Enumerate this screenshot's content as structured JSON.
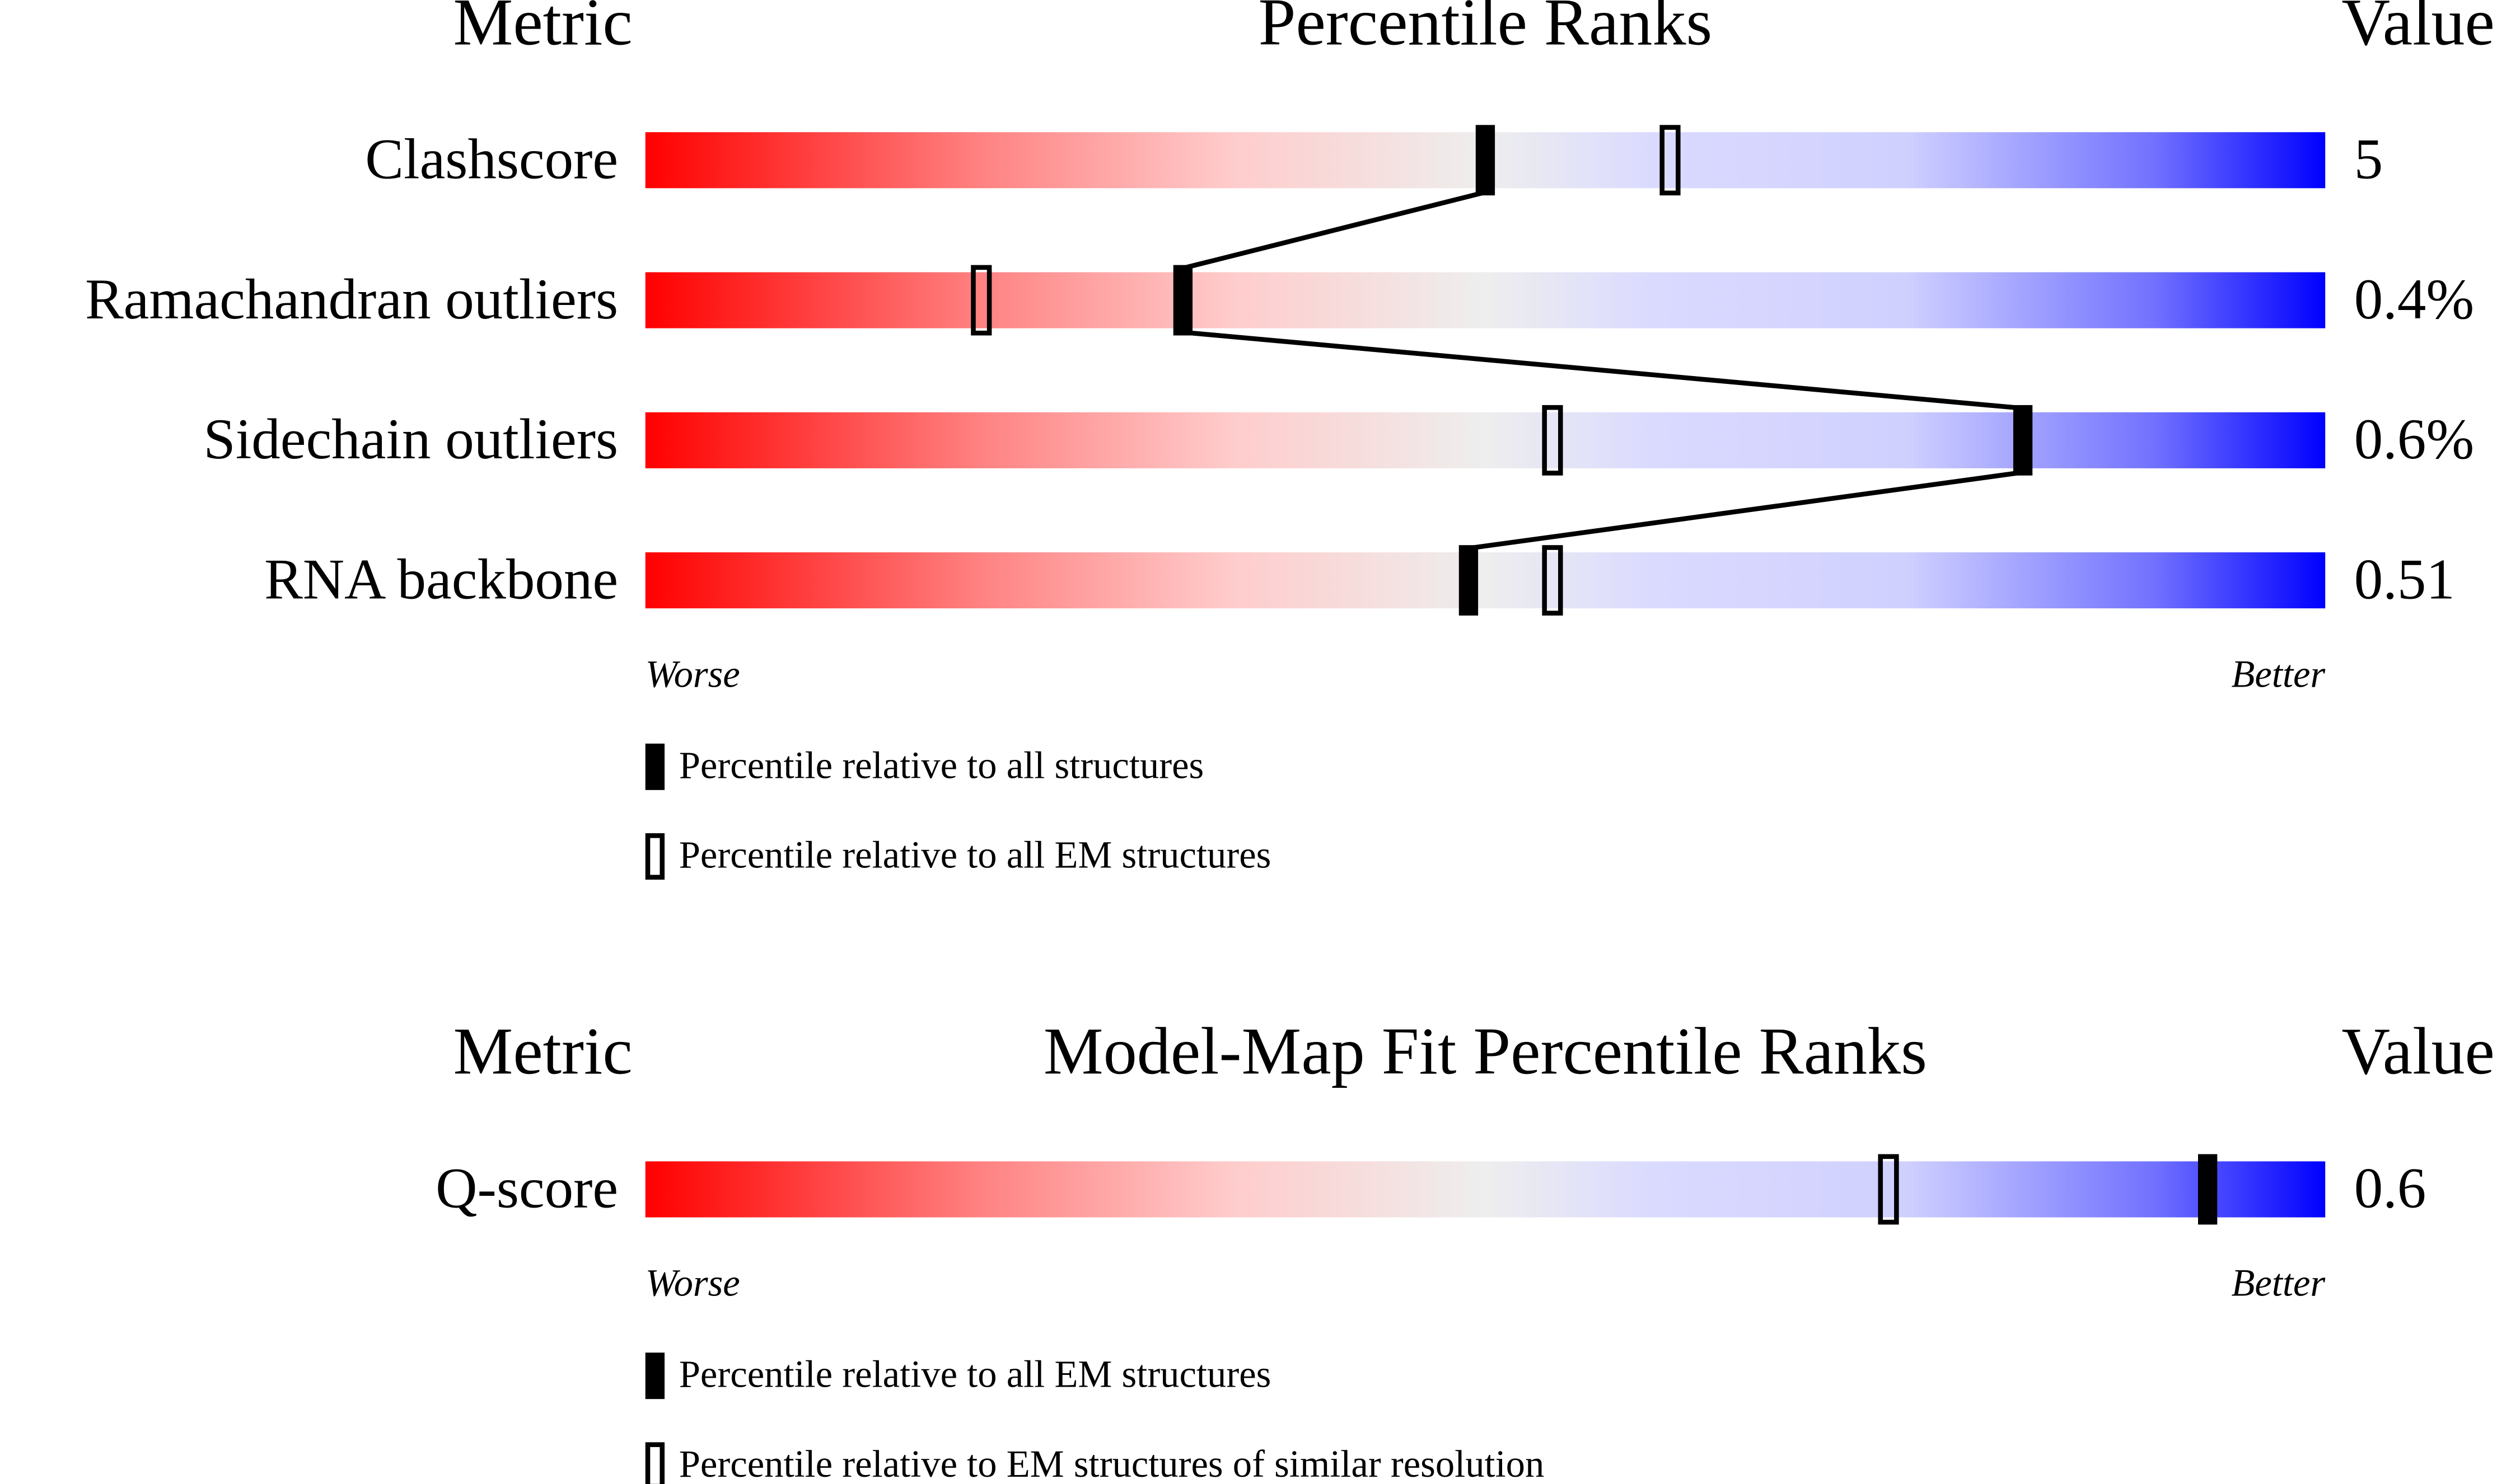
{
  "chart_data": [
    {
      "type": "slider",
      "title": "Percentile Ranks",
      "header_metric": "Metric",
      "header_value": "Value",
      "categories": [
        "Clashscore",
        "Ramachandran outliers",
        "Sidechain outliers",
        "RNA backbone"
      ],
      "metric_values": [
        "5",
        "0.4%",
        "0.6%",
        "0.51"
      ],
      "xlim": [
        0,
        100
      ],
      "low_label": "Worse",
      "high_label": "Better",
      "series": [
        {
          "name": "Percentile relative to all structures",
          "style": "filled",
          "color": "#000000",
          "values": [
            50,
            32,
            82,
            49
          ]
        },
        {
          "name": "Percentile relative to all EM structures",
          "style": "outline",
          "color": "#000000",
          "values": [
            61,
            20,
            54,
            54
          ]
        }
      ]
    },
    {
      "type": "slider",
      "title": "Model-Map Fit Percentile Ranks",
      "header_metric": "Metric",
      "header_value": "Value",
      "categories": [
        "Q-score"
      ],
      "metric_values": [
        "0.6"
      ],
      "xlim": [
        0,
        100
      ],
      "low_label": "Worse",
      "high_label": "Better",
      "series": [
        {
          "name": "Percentile relative to all EM structures",
          "style": "filled",
          "color": "#000000",
          "values": [
            93
          ]
        },
        {
          "name": "Percentile relative to EM structures of similar resolution",
          "style": "outline",
          "color": "#000000",
          "values": [
            74
          ]
        }
      ]
    }
  ]
}
